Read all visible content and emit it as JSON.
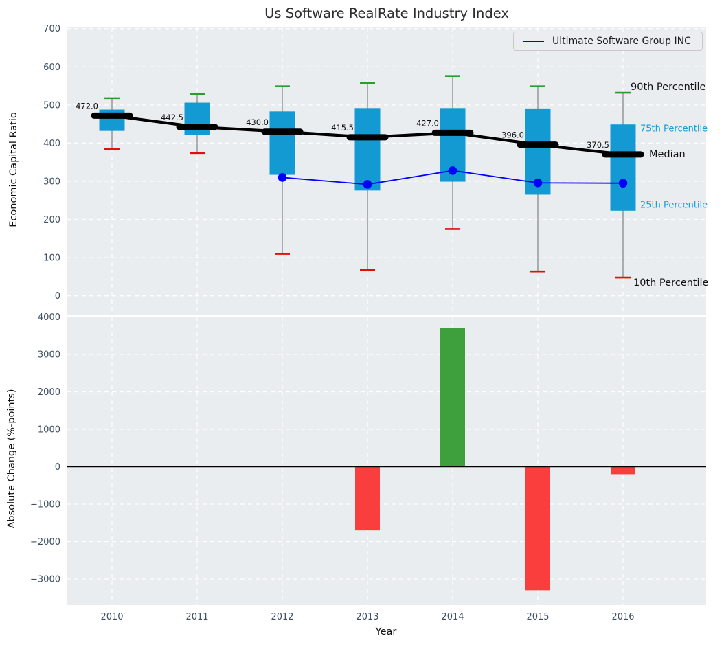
{
  "title": "Us Software RealRate Industry Index",
  "xlabel": "Year",
  "legend": {
    "label": "Ultimate Software Group INC",
    "line_color": "#0000ff"
  },
  "annotations": {
    "p90": "90th Percentile",
    "p75": "75th Percentile",
    "median": "Median",
    "p25": "25th Percentile",
    "p10": "10th Percentile"
  },
  "colors": {
    "panel_bg": "#e9edef",
    "grid": "#ffffff",
    "box_fill": "#149ad2",
    "whisker": "#808080",
    "cap_90": "#2a9e2a",
    "cap_10": "#e80b0b",
    "median_line": "#000000",
    "company_line": "#0000ff",
    "bar_positive": "#3da03d",
    "bar_negative": "#fa3d3d",
    "tick_label": "#3d4f63",
    "zero_line": "#000000"
  },
  "chart_data": [
    {
      "type": "boxplot",
      "panel": "top",
      "ylabel": "Economic Capital Ratio",
      "ylim": [
        -51,
        703
      ],
      "yticks": [
        0,
        100,
        200,
        300,
        400,
        500,
        600,
        700
      ],
      "ytick_labels": [
        "0",
        "100",
        "200",
        "300",
        "400",
        "500",
        "600",
        "700"
      ],
      "grid": true,
      "legend_position": "upper right",
      "categories": [
        2010,
        2011,
        2012,
        2013,
        2014,
        2015,
        2016
      ],
      "p90": [
        518,
        529,
        549,
        557,
        576,
        549,
        532
      ],
      "q3": [
        488,
        506,
        483,
        492,
        492,
        491,
        449
      ],
      "median": [
        472.0,
        442.5,
        430.0,
        415.5,
        427.0,
        396.0,
        370.5
      ],
      "q1": [
        432,
        421,
        317,
        276,
        299,
        265,
        223
      ],
      "p10": [
        385,
        374,
        110,
        68,
        175,
        64,
        48
      ],
      "median_labels": [
        "472.0",
        "442.5",
        "430.0",
        "415.5",
        "427.0",
        "396.0",
        "370.5"
      ],
      "line_series": {
        "name": "Ultimate Software Group INC",
        "x": [
          2012,
          2013,
          2014,
          2015,
          2016
        ],
        "values": [
          310,
          292,
          328,
          296,
          295
        ]
      }
    },
    {
      "type": "bar",
      "panel": "bottom",
      "ylabel": "Absolute Change (%-points)",
      "ylim": [
        -3700,
        4046
      ],
      "yticks": [
        -3000,
        -2000,
        -1000,
        0,
        1000,
        2000,
        3000,
        4000
      ],
      "ytick_labels": [
        "−3000",
        "−2000",
        "−1000",
        "0",
        "1000",
        "2000",
        "3000",
        "4000"
      ],
      "grid": true,
      "zero_line": 0,
      "categories": [
        2010,
        2011,
        2012,
        2013,
        2014,
        2015,
        2016
      ],
      "xtick_labels": [
        "2010",
        "2011",
        "2012",
        "2013",
        "2014",
        "2015",
        "2016"
      ],
      "values": [
        null,
        null,
        null,
        -1700,
        3700,
        -3300,
        -200
      ]
    }
  ]
}
